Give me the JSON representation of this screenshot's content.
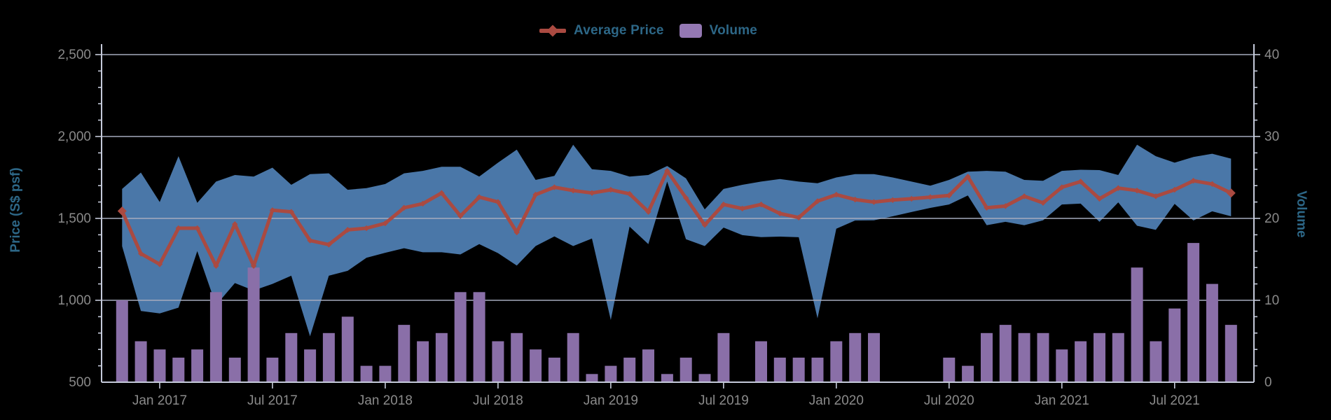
{
  "legend": {
    "items": [
      {
        "label": "Average Price",
        "marker": "line-diamond"
      },
      {
        "label": "Volume",
        "marker": "square"
      }
    ]
  },
  "axes": {
    "left": {
      "title": "Price (S$ psf)",
      "tick_labels": [
        "500",
        "1,000",
        "1,500",
        "2,000",
        "2,500"
      ]
    },
    "right": {
      "title": "Volume",
      "tick_labels": [
        "0",
        "10",
        "20",
        "30",
        "40"
      ]
    }
  },
  "colors": {
    "background": "#000000",
    "avg_price_line": "#aa4a41",
    "band_fill": "#4a77a8",
    "volume_bar": "#8a6fa8",
    "legend_volume_swatch": "#9478b3",
    "text_blue": "#2d6787",
    "tick_label": "#8a8a8a",
    "axis_line": "#c5cada",
    "gridline": "#a6abbd"
  },
  "chart_data": {
    "type": "line+area-band+bar",
    "title": "",
    "xlabel": "",
    "x": [
      "Nov 2016",
      "Dec 2016",
      "Jan 2017",
      "Feb 2017",
      "Mar 2017",
      "Apr 2017",
      "May 2017",
      "Jun 2017",
      "Jul 2017",
      "Aug 2017",
      "Sep 2017",
      "Oct 2017",
      "Nov 2017",
      "Dec 2017",
      "Jan 2018",
      "Feb 2018",
      "Mar 2018",
      "Apr 2018",
      "May 2018",
      "Jun 2018",
      "Jul 2018",
      "Aug 2018",
      "Sep 2018",
      "Oct 2018",
      "Nov 2018",
      "Dec 2018",
      "Jan 2019",
      "Feb 2019",
      "Mar 2019",
      "Apr 2019",
      "May 2019",
      "Jun 2019",
      "Jul 2019",
      "Aug 2019",
      "Sep 2019",
      "Oct 2019",
      "Nov 2019",
      "Dec 2019",
      "Jan 2020",
      "Feb 2020",
      "Mar 2020",
      "Apr 2020",
      "May 2020",
      "Jun 2020",
      "Jul 2020",
      "Aug 2020",
      "Sep 2020",
      "Oct 2020",
      "Nov 2020",
      "Dec 2020",
      "Jan 2021",
      "Feb 2021",
      "Mar 2021",
      "Apr 2021",
      "May 2021",
      "Jun 2021",
      "Jul 2021",
      "Aug 2021",
      "Sep 2021",
      "Oct 2021"
    ],
    "x_tick_labels": [
      "Jan 2017",
      "Jul 2017",
      "Jan 2018",
      "Jul 2018",
      "Jan 2019",
      "Jul 2019",
      "Jan 2020",
      "Jul 2020",
      "Jan 2021",
      "Jul 2021"
    ],
    "y_left": {
      "label": "Price (S$ psf)",
      "min": 500,
      "max": 2500,
      "major_ticks": [
        500,
        1000,
        1500,
        2000,
        2500
      ],
      "minor_step": 100
    },
    "y_right": {
      "label": "Volume",
      "min": 0,
      "max": 40,
      "major_ticks": [
        0,
        10,
        20,
        30,
        40
      ],
      "minor_step": 2
    },
    "gridlines_at_price": [
      1000,
      1500,
      2000,
      2500
    ],
    "series": [
      {
        "name": "Average Price",
        "type": "line",
        "axis": "left",
        "values": [
          1545,
          1285,
          1220,
          1440,
          1440,
          1210,
          1465,
          1210,
          1550,
          1540,
          1365,
          1340,
          1430,
          1440,
          1470,
          1565,
          1590,
          1655,
          1515,
          1630,
          1600,
          1415,
          1645,
          1690,
          1670,
          1655,
          1675,
          1650,
          1540,
          1790,
          1625,
          1460,
          1585,
          1560,
          1585,
          1530,
          1505,
          1605,
          1645,
          1615,
          1600,
          1612,
          1620,
          1630,
          1640,
          1755,
          1565,
          1575,
          1635,
          1595,
          1690,
          1725,
          1620,
          1685,
          1670,
          1635,
          1675,
          1730,
          1710,
          1655
        ]
      },
      {
        "name": "Price Range (unlabeled band)",
        "type": "band",
        "axis": "left",
        "high": [
          1680,
          1780,
          1600,
          1880,
          1595,
          1725,
          1765,
          1755,
          1810,
          1705,
          1770,
          1775,
          1675,
          1685,
          1710,
          1775,
          1790,
          1815,
          1815,
          1755,
          1840,
          1920,
          1735,
          1760,
          1950,
          1800,
          1790,
          1755,
          1765,
          1820,
          1745,
          1555,
          1680,
          1705,
          1725,
          1740,
          1725,
          1715,
          1750,
          1770,
          1770,
          1750,
          1725,
          1700,
          1735,
          1785,
          1790,
          1785,
          1735,
          1730,
          1790,
          1797,
          1795,
          1765,
          1950,
          1880,
          1840,
          1875,
          1895,
          1865
        ],
        "low": [
          1330,
          935,
          920,
          955,
          1300,
          970,
          1105,
          1060,
          1100,
          1150,
          780,
          1150,
          1180,
          1260,
          1290,
          1318,
          1293,
          1293,
          1280,
          1343,
          1288,
          1212,
          1331,
          1390,
          1331,
          1377,
          880,
          1450,
          1343,
          1725,
          1373,
          1331,
          1444,
          1398,
          1386,
          1389,
          1385,
          890,
          1437,
          1487,
          1488,
          1513,
          1539,
          1564,
          1585,
          1640,
          1458,
          1479,
          1458,
          1488,
          1585,
          1590,
          1479,
          1598,
          1455,
          1430,
          1589,
          1487,
          1543,
          1513
        ]
      },
      {
        "name": "Volume",
        "type": "bar",
        "axis": "right",
        "values": [
          10,
          5,
          4,
          3,
          4,
          11,
          3,
          14,
          3,
          6,
          4,
          6,
          8,
          2,
          2,
          7,
          5,
          6,
          11,
          11,
          5,
          6,
          4,
          3,
          6,
          1,
          2,
          3,
          4,
          1,
          3,
          1,
          6,
          0,
          5,
          3,
          3,
          3,
          5,
          6,
          6,
          0,
          0,
          0,
          3,
          2,
          6,
          7,
          6,
          6,
          4,
          5,
          6,
          6,
          14,
          5,
          9,
          17,
          12,
          7
        ]
      }
    ]
  }
}
